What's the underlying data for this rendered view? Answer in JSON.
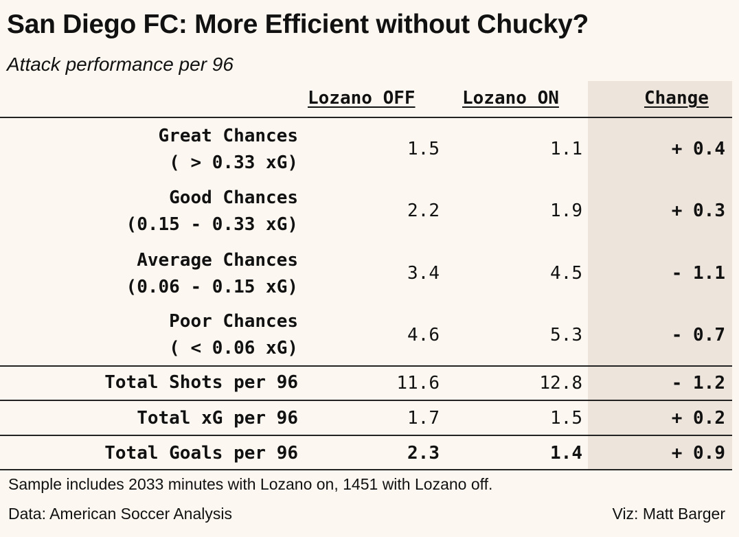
{
  "title": "San Diego FC: More Efficient without Chucky?",
  "subtitle": "Attack performance per 96",
  "columns": {
    "off": "Lozano OFF",
    "on": "Lozano ON",
    "change": "Change"
  },
  "rows": [
    {
      "label": "Great Chances",
      "sublabel": "( > 0.33 xG)",
      "off": "1.5",
      "on": "1.1",
      "change": "+ 0.4"
    },
    {
      "label": "Good Chances",
      "sublabel": "(0.15 - 0.33 xG)",
      "off": "2.2",
      "on": "1.9",
      "change": "+ 0.3"
    },
    {
      "label": "Average Chances",
      "sublabel": "(0.06 - 0.15 xG)",
      "off": "3.4",
      "on": "4.5",
      "change": "- 1.1"
    },
    {
      "label": "Poor Chances",
      "sublabel": "( < 0.06 xG)",
      "off": "4.6",
      "on": "5.3",
      "change": "- 0.7"
    }
  ],
  "totals": [
    {
      "label": "Total Shots per 96",
      "off": "11.6",
      "on": "12.8",
      "change": "- 1.2"
    },
    {
      "label": "Total xG per 96",
      "off": "1.7",
      "on": "1.5",
      "change": "+ 0.2"
    },
    {
      "label": "Total Goals per 96",
      "off": "2.3",
      "on": "1.4",
      "change": "+ 0.9"
    }
  ],
  "note": "Sample includes 2033 minutes with Lozano on, 1451 with Lozano off.",
  "source": "Data: American Soccer Analysis",
  "credit": "Viz: Matt Barger",
  "colors": {
    "background": "#fcf8f1",
    "change_column": "#ede4dc",
    "text": "#111111"
  },
  "chart_data": {
    "type": "table",
    "title": "San Diego FC: More Efficient without Chucky?",
    "subtitle": "Attack performance per 96",
    "columns": [
      "Lozano OFF",
      "Lozano ON",
      "Change"
    ],
    "rows": [
      {
        "category": "Great Chances ( > 0.33 xG)",
        "off": 1.5,
        "on": 1.1,
        "change": 0.4
      },
      {
        "category": "Good Chances (0.15 - 0.33 xG)",
        "off": 2.2,
        "on": 1.9,
        "change": 0.3
      },
      {
        "category": "Average Chances (0.06 - 0.15 xG)",
        "off": 3.4,
        "on": 4.5,
        "change": -1.1
      },
      {
        "category": "Poor Chances ( < 0.06 xG)",
        "off": 4.6,
        "on": 5.3,
        "change": -0.7
      },
      {
        "category": "Total Shots per 96",
        "off": 11.6,
        "on": 12.8,
        "change": -1.2
      },
      {
        "category": "Total xG per 96",
        "off": 1.7,
        "on": 1.5,
        "change": 0.2
      },
      {
        "category": "Total Goals per 96",
        "off": 2.3,
        "on": 1.4,
        "change": 0.9
      }
    ]
  }
}
